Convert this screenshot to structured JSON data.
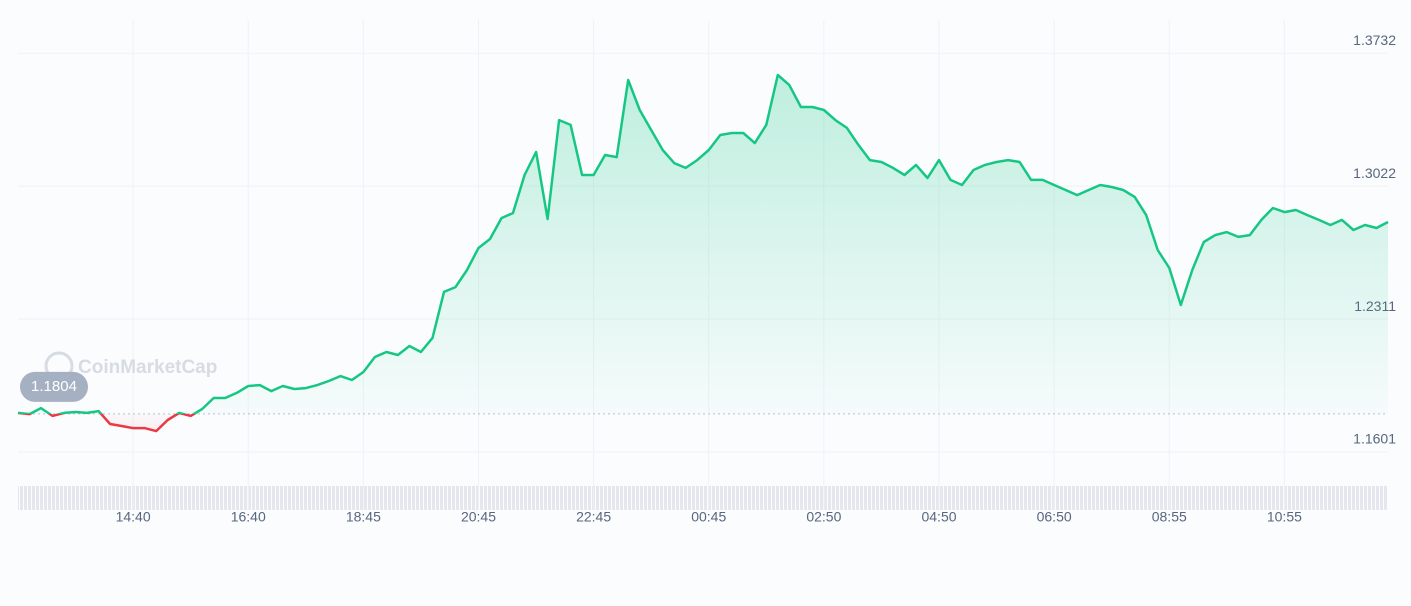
{
  "chart_data": {
    "type": "line",
    "watermark": "CoinMarketCap",
    "categories": [
      null,
      null,
      null,
      null,
      null,
      null,
      null,
      null,
      null,
      null,
      "14:40",
      null,
      null,
      null,
      null,
      null,
      null,
      null,
      null,
      null,
      "16:40",
      null,
      null,
      null,
      null,
      null,
      null,
      null,
      null,
      null,
      "18:45",
      null,
      null,
      null,
      null,
      null,
      null,
      null,
      null,
      null,
      "20:45",
      null,
      null,
      null,
      null,
      null,
      null,
      null,
      null,
      null,
      "22:45",
      null,
      null,
      null,
      null,
      null,
      null,
      null,
      null,
      null,
      "00:45",
      null,
      null,
      null,
      null,
      null,
      null,
      null,
      null,
      null,
      "02:50",
      null,
      null,
      null,
      null,
      null,
      null,
      null,
      null,
      null,
      "04:50",
      null,
      null,
      null,
      null,
      null,
      null,
      null,
      null,
      null,
      "06:50",
      null,
      null,
      null,
      null,
      null,
      null,
      null,
      null,
      null,
      "08:55",
      null,
      null,
      null,
      null,
      null,
      null,
      null,
      null,
      null,
      "10:55",
      null,
      null,
      null,
      null,
      null,
      null,
      null,
      null,
      null
    ],
    "values": [
      1.1809,
      1.1803,
      1.1835,
      1.1793,
      1.1809,
      1.1814,
      1.1809,
      1.1819,
      1.175,
      1.1739,
      1.1728,
      1.1728,
      1.1712,
      1.1771,
      1.1809,
      1.1793,
      1.183,
      1.1889,
      1.1889,
      1.1916,
      1.1953,
      1.1958,
      1.1926,
      1.1953,
      1.1937,
      1.1942,
      1.1958,
      1.198,
      1.2006,
      1.1985,
      1.2028,
      1.2108,
      1.2135,
      1.2119,
      1.2167,
      1.2135,
      1.221,
      1.2456,
      1.2482,
      1.2573,
      1.2691,
      1.2739,
      1.2851,
      1.2878,
      1.3081,
      1.3204,
      1.2846,
      1.3375,
      1.3349,
      1.3081,
      1.3081,
      1.3188,
      1.3177,
      1.3589,
      1.3429,
      1.3322,
      1.3215,
      1.3145,
      1.3119,
      1.3161,
      1.3215,
      1.3295,
      1.3306,
      1.3306,
      1.3252,
      1.3349,
      1.3616,
      1.3562,
      1.3445,
      1.3445,
      1.3429,
      1.3375,
      1.3333,
      1.3242,
      1.3161,
      1.3151,
      1.3119,
      1.3081,
      1.3135,
      1.3065,
      1.3161,
      1.3055,
      1.3028,
      1.3108,
      1.3135,
      1.3151,
      1.3161,
      1.3151,
      1.3055,
      1.3055,
      1.3028,
      1.3001,
      1.2974,
      1.3001,
      1.3028,
      1.3017,
      1.3001,
      1.2964,
      1.2867,
      1.268,
      1.2584,
      1.2386,
      1.2573,
      1.2723,
      1.276,
      1.2776,
      1.275,
      1.276,
      1.2841,
      1.2905,
      1.2883,
      1.2894,
      1.2867,
      1.2841,
      1.2814,
      1.2841,
      1.2787,
      1.2814,
      1.2798,
      1.283
    ],
    "color": "#16c784",
    "negative_color": "#ea3943",
    "baseline": 1.1804,
    "ylim": [
      1.129,
      1.391
    ],
    "yticks": [
      1.1601,
      1.2311,
      1.3022,
      1.3732
    ],
    "grid": true
  }
}
